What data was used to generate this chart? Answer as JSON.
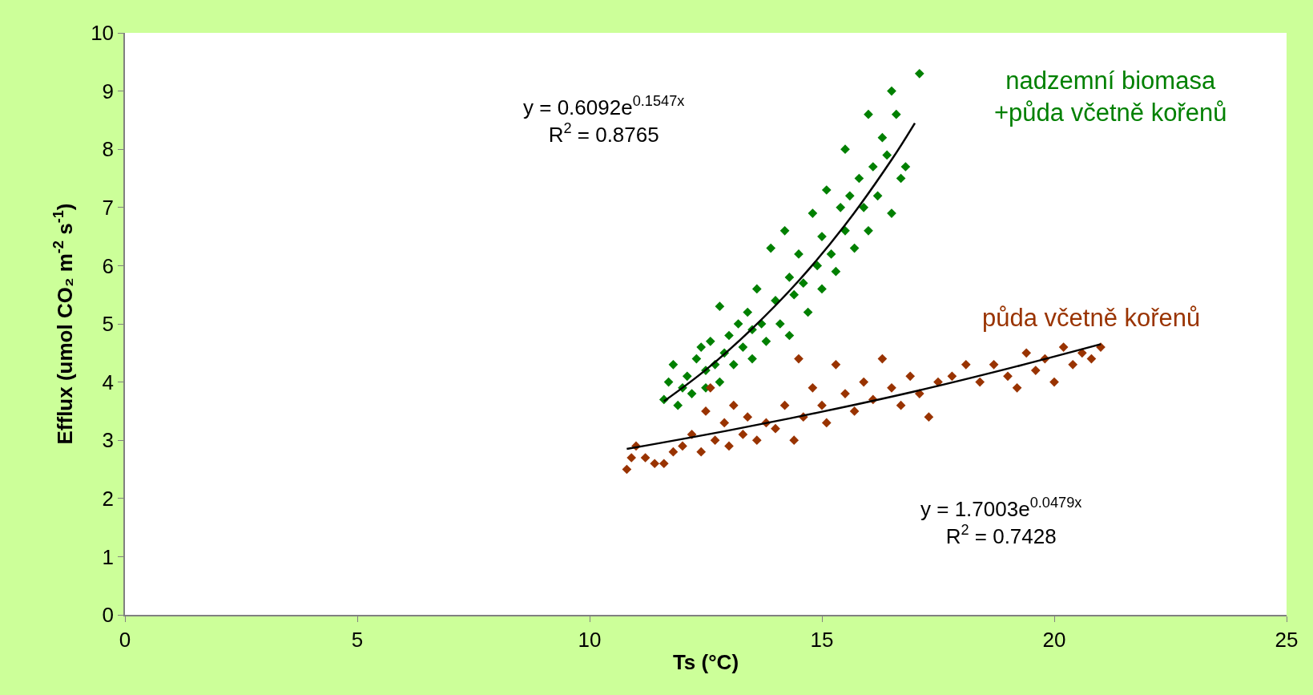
{
  "chart_data": {
    "type": "scatter",
    "xlabel": "Ts (°C)",
    "ylabel": "Efflux (umol CO₂ m$^{-2}$ s$^{-1}$)",
    "xlim": [
      0,
      25
    ],
    "xticks": [
      0,
      5,
      10,
      15,
      20,
      25
    ],
    "ylim": [
      0,
      10
    ],
    "yticks": [
      0,
      1,
      2,
      3,
      4,
      5,
      6,
      7,
      8,
      9,
      10
    ],
    "series": [
      {
        "name": "nadzemní biomasa\n+půda včetně kořenů",
        "marker": "diamond",
        "color": "#008000",
        "x": [
          11.6,
          11.7,
          11.8,
          11.9,
          12.0,
          12.1,
          12.2,
          12.3,
          12.4,
          12.5,
          12.5,
          12.6,
          12.7,
          12.8,
          12.8,
          12.9,
          13.0,
          13.1,
          13.2,
          13.3,
          13.4,
          13.5,
          13.5,
          13.6,
          13.7,
          13.8,
          13.9,
          14.0,
          14.1,
          14.2,
          14.3,
          14.3,
          14.4,
          14.5,
          14.6,
          14.7,
          14.8,
          14.9,
          15.0,
          15.0,
          15.1,
          15.2,
          15.3,
          15.4,
          15.5,
          15.5,
          15.6,
          15.7,
          15.8,
          15.9,
          16.0,
          16.0,
          16.1,
          16.2,
          16.3,
          16.4,
          16.5,
          16.5,
          16.6,
          16.7,
          16.8,
          17.1
        ],
        "values": [
          3.7,
          4.0,
          4.3,
          3.6,
          3.9,
          4.1,
          3.8,
          4.4,
          4.6,
          4.2,
          3.9,
          4.7,
          4.3,
          5.3,
          4.0,
          4.5,
          4.8,
          4.3,
          5.0,
          4.6,
          5.2,
          4.9,
          4.4,
          5.6,
          5.0,
          4.7,
          6.3,
          5.4,
          5.0,
          6.6,
          5.8,
          4.8,
          5.5,
          6.2,
          5.7,
          5.2,
          6.9,
          6.0,
          6.5,
          5.6,
          7.3,
          6.2,
          5.9,
          7.0,
          6.6,
          8.0,
          7.2,
          6.3,
          7.5,
          7.0,
          8.6,
          6.6,
          7.7,
          7.2,
          8.2,
          7.9,
          9.0,
          6.9,
          8.6,
          7.5,
          7.7,
          9.3
        ]
      },
      {
        "name": "půda včetně kořenů",
        "marker": "diamond",
        "color": "#993300",
        "x": [
          10.8,
          10.9,
          11.0,
          11.2,
          11.4,
          11.6,
          11.8,
          12.0,
          12.2,
          12.4,
          12.5,
          12.6,
          12.7,
          12.9,
          13.0,
          13.1,
          13.3,
          13.4,
          13.6,
          13.8,
          14.0,
          14.2,
          14.4,
          14.5,
          14.6,
          14.8,
          15.0,
          15.1,
          15.3,
          15.5,
          15.7,
          15.9,
          16.1,
          16.3,
          16.5,
          16.7,
          16.9,
          17.1,
          17.3,
          17.5,
          17.8,
          18.1,
          18.4,
          18.7,
          19.0,
          19.2,
          19.4,
          19.6,
          19.8,
          20.0,
          20.2,
          20.4,
          20.6,
          20.8,
          21.0
        ],
        "values": [
          2.5,
          2.7,
          2.9,
          2.7,
          2.6,
          2.6,
          2.8,
          2.9,
          3.1,
          2.8,
          3.5,
          3.9,
          3.0,
          3.3,
          2.9,
          3.6,
          3.1,
          3.4,
          3.0,
          3.3,
          3.2,
          3.6,
          3.0,
          4.4,
          3.4,
          3.9,
          3.6,
          3.3,
          4.3,
          3.8,
          3.5,
          4.0,
          3.7,
          4.4,
          3.9,
          3.6,
          4.1,
          3.8,
          3.4,
          4.0,
          4.1,
          4.3,
          4.0,
          4.3,
          4.1,
          3.9,
          4.5,
          4.2,
          4.4,
          4.0,
          4.6,
          4.3,
          4.5,
          4.4,
          4.6
        ]
      },
      {
        "type": "line",
        "marker": "none",
        "color": "#000000",
        "x": [
          11.6,
          12.5,
          13.5,
          14.5,
          15.5,
          16.5,
          17.0
        ],
        "values": [
          3.67,
          4.21,
          4.92,
          5.74,
          6.7,
          7.82,
          8.45
        ]
      },
      {
        "type": "line",
        "marker": "none",
        "color": "#000000",
        "x": [
          10.8,
          13.0,
          15.0,
          17.0,
          19.0,
          21.0
        ],
        "values": [
          2.85,
          3.17,
          3.49,
          3.84,
          4.23,
          4.65
        ]
      }
    ],
    "annotations": [
      "y = 0.6092e$^{0.1547x}$\nR$^{2}$ = 0.8765",
      "y = 1.7003e$^{0.0479x}$\nR$^{2}$ = 0.7428"
    ]
  }
}
